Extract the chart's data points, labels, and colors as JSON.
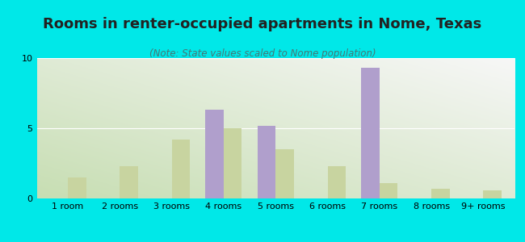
{
  "title": "Rooms in renter-occupied apartments in Nome, Texas",
  "subtitle": "(Note: State values scaled to Nome population)",
  "categories": [
    "1 room",
    "2 rooms",
    "3 rooms",
    "4 rooms",
    "5 rooms",
    "6 rooms",
    "7 rooms",
    "8 rooms",
    "9+ rooms"
  ],
  "nome_values": [
    0,
    0,
    0,
    6.3,
    5.2,
    0,
    9.3,
    0,
    0
  ],
  "texas_values": [
    1.5,
    2.3,
    4.2,
    5.0,
    3.5,
    2.3,
    1.1,
    0.7,
    0.6
  ],
  "nome_color": "#b09fcc",
  "texas_color": "#c8d4a0",
  "background_color": "#00e8e8",
  "ylim": [
    0,
    10
  ],
  "yticks": [
    0,
    5,
    10
  ],
  "bar_width": 0.35,
  "title_fontsize": 13,
  "subtitle_fontsize": 8.5,
  "tick_fontsize": 8,
  "legend_fontsize": 9
}
